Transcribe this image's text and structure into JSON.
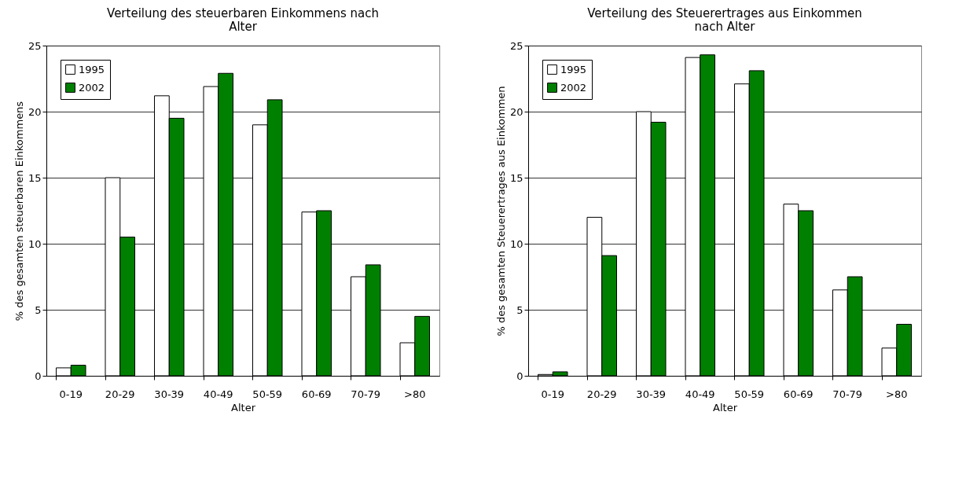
{
  "chart_data": [
    {
      "type": "bar",
      "title": "Verteilung des steuerbaren Einkommens nach Alter",
      "xlabel": "Alter",
      "ylabel": "% des gesamten steuerbaren Einkommens",
      "categories": [
        "0-19",
        "20-29",
        "30-39",
        "40-49",
        "50-59",
        "60-69",
        "70-79",
        ">80"
      ],
      "series": [
        {
          "name": "1995",
          "color": "#ffffff",
          "values": [
            0.6,
            15.0,
            21.2,
            21.9,
            19.0,
            12.4,
            7.5,
            2.5
          ]
        },
        {
          "name": "2002",
          "color": "#008000",
          "values": [
            0.8,
            10.5,
            19.5,
            22.9,
            20.9,
            12.5,
            8.4,
            4.5
          ]
        }
      ],
      "ylim": [
        0,
        25
      ],
      "yticks": [
        0,
        5,
        10,
        15,
        20,
        25
      ],
      "grid": "y",
      "legend": "top left"
    },
    {
      "type": "bar",
      "title": "Verteilung des Steuerertrages aus Einkommen nach Alter",
      "xlabel": "Alter",
      "ylabel": "% des gesamten Steuerertrages aus Einkommen",
      "categories": [
        "0-19",
        "20-29",
        "30-39",
        "40-49",
        "50-59",
        "60-69",
        "70-79",
        ">80"
      ],
      "series": [
        {
          "name": "1995",
          "color": "#ffffff",
          "values": [
            0.1,
            12.0,
            20.0,
            24.1,
            22.1,
            13.0,
            6.5,
            2.1
          ]
        },
        {
          "name": "2002",
          "color": "#008000",
          "values": [
            0.3,
            9.1,
            19.2,
            24.3,
            23.1,
            12.5,
            7.5,
            3.9
          ]
        }
      ],
      "ylim": [
        0,
        25
      ],
      "yticks": [
        0,
        5,
        10,
        15,
        20,
        25
      ],
      "grid": "y",
      "legend": "top left"
    }
  ]
}
